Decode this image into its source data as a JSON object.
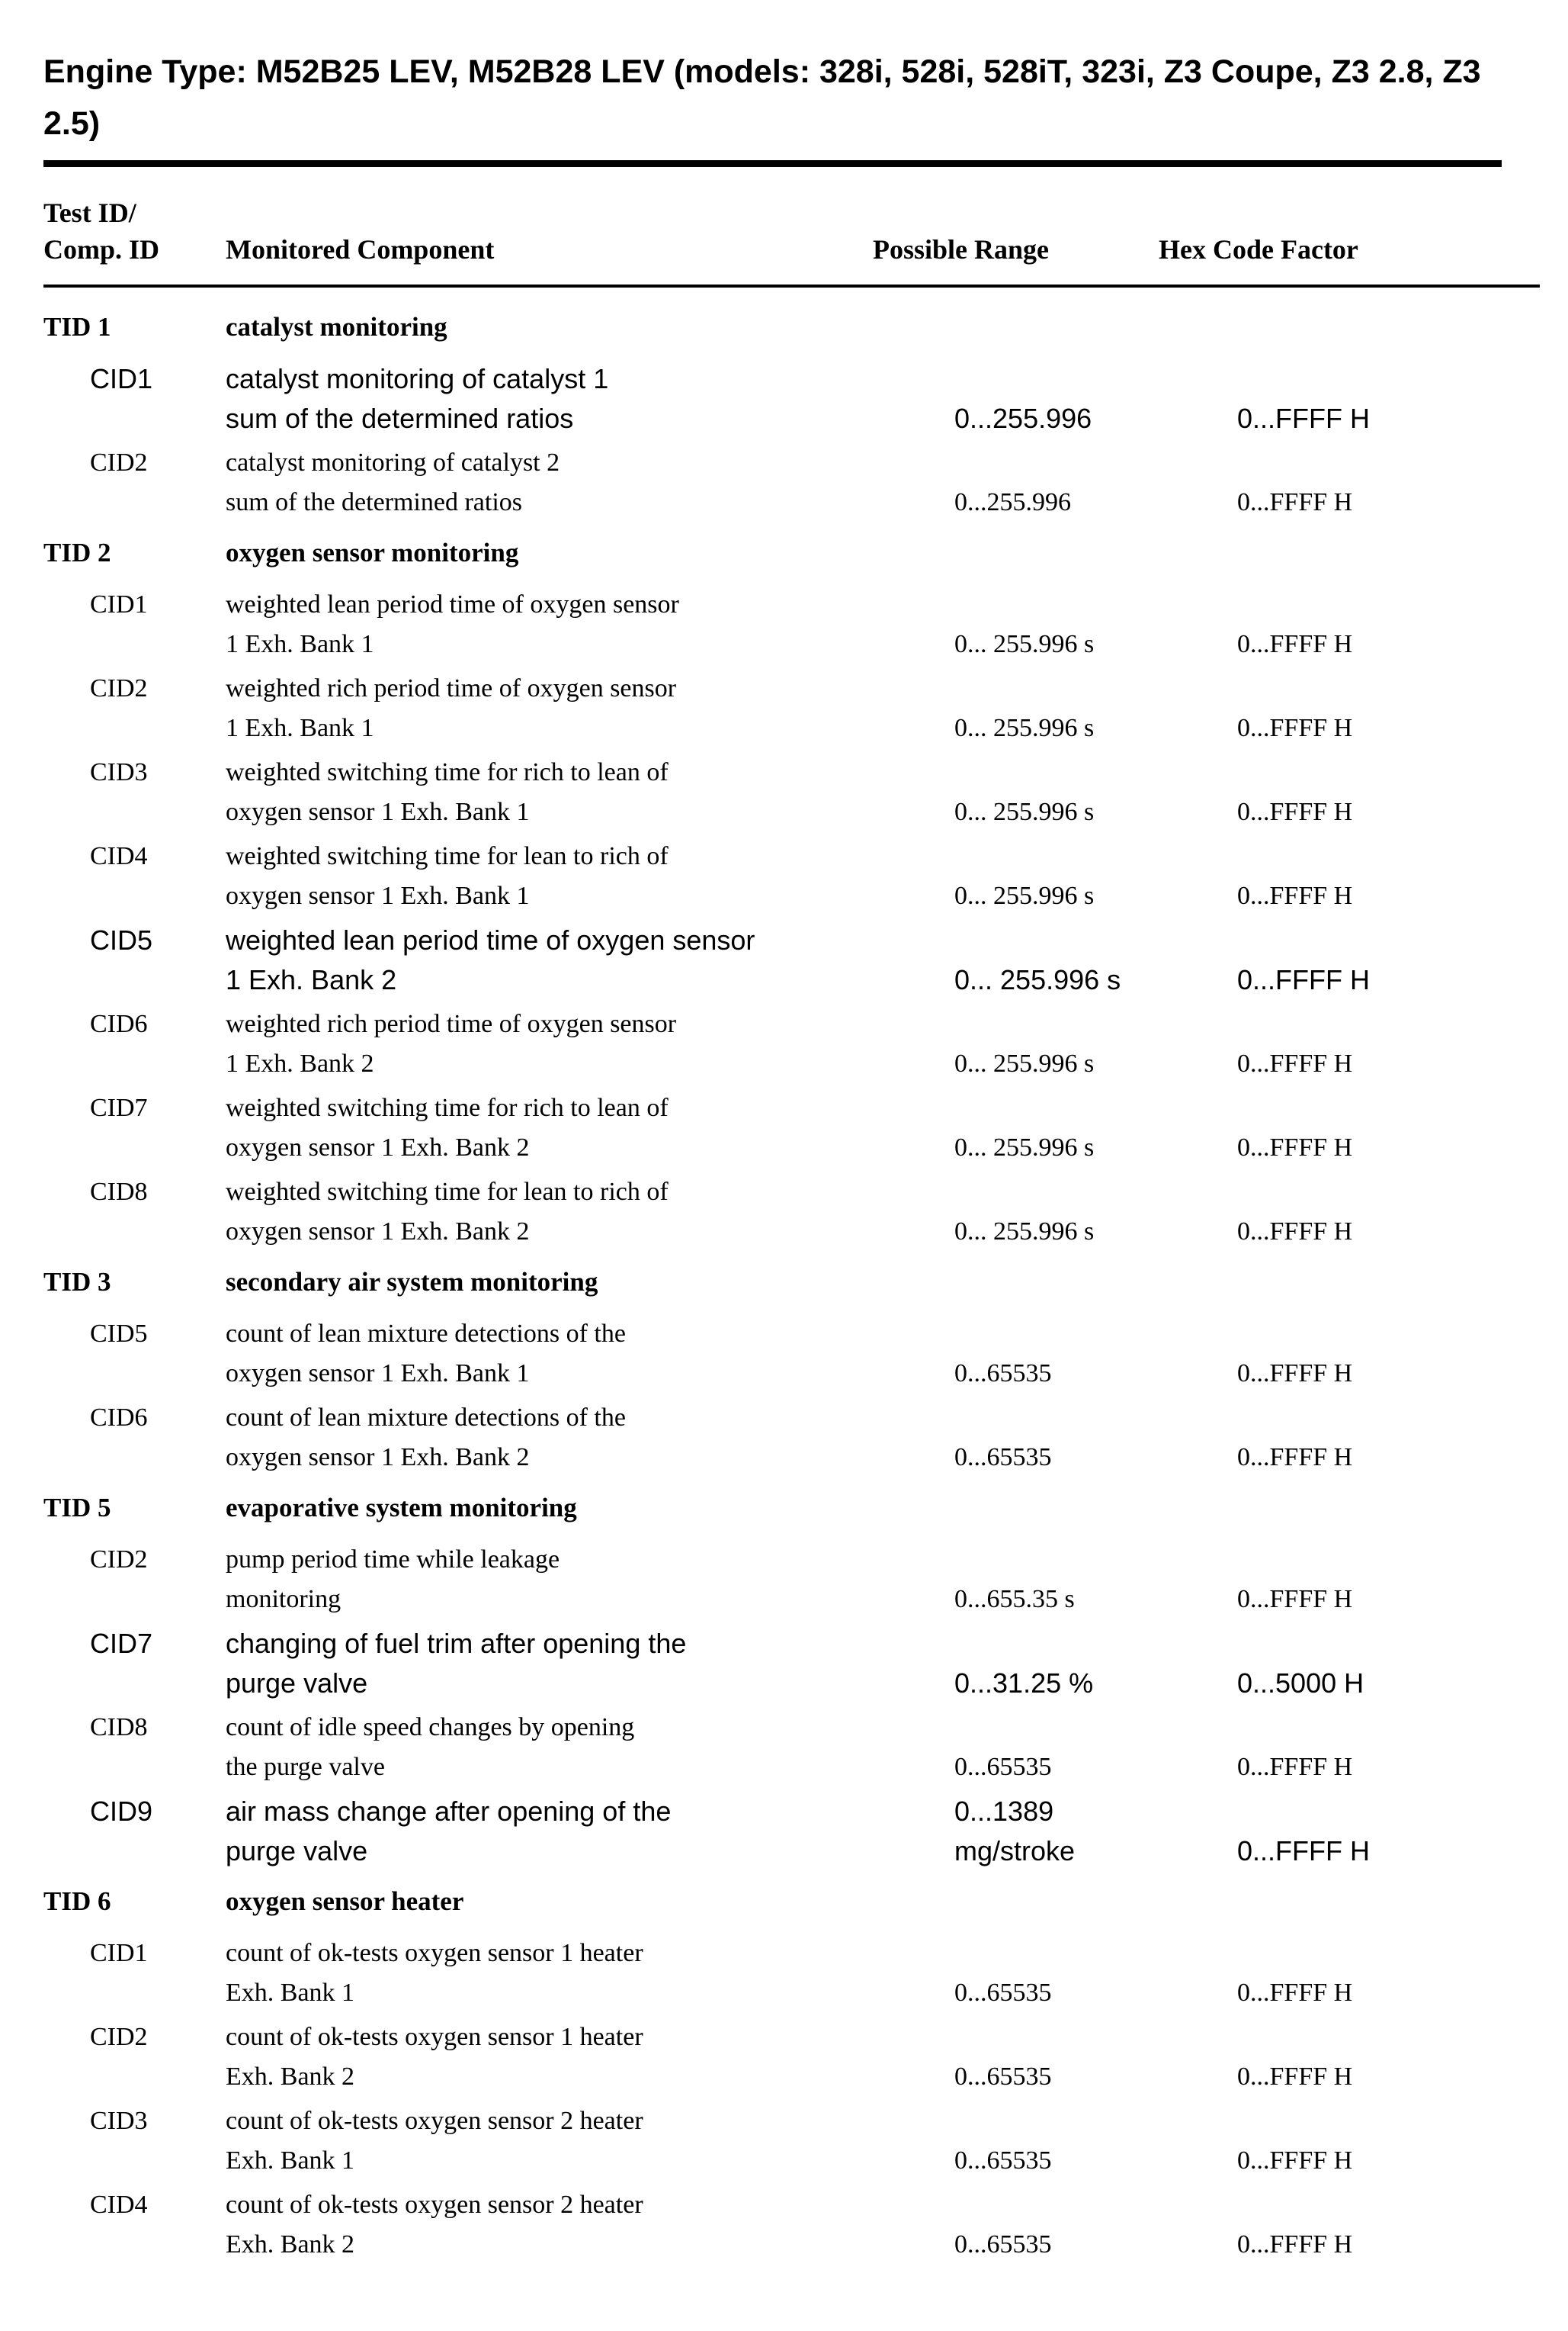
{
  "page": {
    "title": "Engine Type: M52B25 LEV, M52B28 LEV (models: 328i, 528i, 528iT, 323i, Z3 Coupe, Z3 2.8, Z3 2.5)"
  },
  "table": {
    "headers": {
      "test_id_line1": "Test ID/",
      "test_id_line2": "Comp. ID",
      "component": "Monitored Component",
      "range": "Possible Range",
      "hex": "Hex Code Factor"
    },
    "groups": [
      {
        "tid": "TID 1",
        "name": "catalyst monitoring",
        "rows": [
          {
            "cid": "CID1",
            "variant": "sans",
            "line1": "catalyst monitoring of catalyst 1",
            "line2": "sum of the determined ratios",
            "range": "0...255.996",
            "hex": "0...FFFF H"
          },
          {
            "cid": "CID2",
            "variant": "serif",
            "line1": "catalyst monitoring of catalyst 2",
            "line2": "sum of the determined ratios",
            "range": "0...255.996",
            "hex": "0...FFFF H"
          }
        ]
      },
      {
        "tid": "TID 2",
        "name": "oxygen sensor monitoring",
        "rows": [
          {
            "cid": "CID1",
            "variant": "serif",
            "line1": "weighted lean period time of oxygen sensor",
            "line2": "1 Exh. Bank 1",
            "range": "0... 255.996 s",
            "hex": "0...FFFF H"
          },
          {
            "cid": "CID2",
            "variant": "serif",
            "line1": "weighted rich period time of oxygen sensor",
            "line2": "1 Exh. Bank 1",
            "range": "0... 255.996 s",
            "hex": "0...FFFF H"
          },
          {
            "cid": "CID3",
            "variant": "serif",
            "line1": "weighted switching time for rich to lean of",
            "line2": "oxygen sensor 1 Exh. Bank 1",
            "range": "0... 255.996 s",
            "hex": "0...FFFF H"
          },
          {
            "cid": "CID4",
            "variant": "serif",
            "line1": "weighted switching time for lean to rich of",
            "line2": "oxygen sensor 1 Exh. Bank 1",
            "range": "0... 255.996 s",
            "hex": "0...FFFF H"
          },
          {
            "cid": "CID5",
            "variant": "sans",
            "line1": "weighted lean period time of oxygen sensor",
            "line2": "1 Exh. Bank 2",
            "range": "0... 255.996 s",
            "hex": "0...FFFF H"
          },
          {
            "cid": "CID6",
            "variant": "serif",
            "line1": "weighted rich period time of oxygen sensor",
            "line2": "1 Exh. Bank 2",
            "range": "0... 255.996 s",
            "hex": "0...FFFF H"
          },
          {
            "cid": "CID7",
            "variant": "serif",
            "line1": "weighted switching time for rich to lean of",
            "line2": "oxygen sensor 1 Exh. Bank 2",
            "range": "0... 255.996 s",
            "hex": "0...FFFF H"
          },
          {
            "cid": "CID8",
            "variant": "serif",
            "line1": "weighted switching time for lean to rich of",
            "line2": "oxygen sensor 1 Exh. Bank 2",
            "range": "0... 255.996 s",
            "hex": "0...FFFF H"
          }
        ]
      },
      {
        "tid": "TID 3",
        "name": "secondary air system monitoring",
        "rows": [
          {
            "cid": "CID5",
            "variant": "serif",
            "line1": "count of lean mixture detections of the",
            "line2": "oxygen sensor 1 Exh. Bank 1",
            "range": "0...65535",
            "hex": "0...FFFF H"
          },
          {
            "cid": "CID6",
            "variant": "serif",
            "line1": "count of lean mixture detections of the",
            "line2": "oxygen sensor 1 Exh. Bank 2",
            "range": "0...65535",
            "hex": "0...FFFF H"
          }
        ]
      },
      {
        "tid": "TID 5",
        "name": "evaporative system monitoring",
        "rows": [
          {
            "cid": "CID2",
            "variant": "serif",
            "line1": "pump period time while leakage",
            "line2": "monitoring",
            "range": "0...655.35 s",
            "hex": "0...FFFF H"
          },
          {
            "cid": "CID7",
            "variant": "sans",
            "line1": "changing of fuel trim after opening the",
            "line2": "purge valve",
            "range": "0...31.25 %",
            "hex": "0...5000 H"
          },
          {
            "cid": "CID8",
            "variant": "serif",
            "line1": "count of idle speed changes by opening",
            "line2": "the purge valve",
            "range": "0...65535",
            "hex": "0...FFFF H"
          },
          {
            "cid": "CID9",
            "variant": "sans",
            "line1": "air mass change after opening of the",
            "line2": "purge valve",
            "range": "0...1389 mg/stroke",
            "hex": "0...FFFF H"
          }
        ]
      },
      {
        "tid": "TID 6",
        "name": "oxygen sensor heater",
        "rows": [
          {
            "cid": "CID1",
            "variant": "serif",
            "line1": "count of ok-tests oxygen sensor 1 heater",
            "line2": "Exh. Bank 1",
            "range": "0...65535",
            "hex": "0...FFFF H"
          },
          {
            "cid": "CID2",
            "variant": "serif",
            "line1": "count of ok-tests oxygen sensor 1 heater",
            "line2": "Exh. Bank 2",
            "range": "0...65535",
            "hex": "0...FFFF H"
          },
          {
            "cid": "CID3",
            "variant": "serif",
            "line1": "count of ok-tests oxygen sensor 2 heater",
            "line2": "Exh. Bank 1",
            "range": "0...65535",
            "hex": "0...FFFF H"
          },
          {
            "cid": "CID4",
            "variant": "serif",
            "line1": "count of ok-tests oxygen sensor 2 heater",
            "line2": "Exh. Bank 2",
            "range": "0...65535",
            "hex": "0...FFFF H"
          }
        ]
      }
    ]
  }
}
